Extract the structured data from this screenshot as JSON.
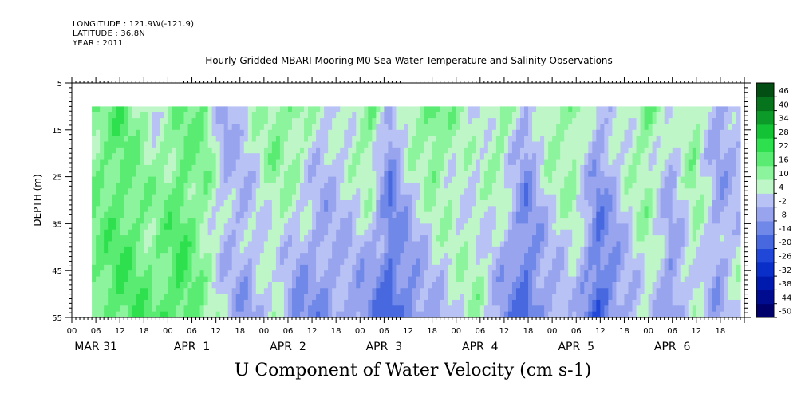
{
  "header": {
    "longitude": "LONGITUDE : 121.9W(-121.9)",
    "latitude": "LATITUDE : 36.8N",
    "year": "YEAR : 2011"
  },
  "chart_data": {
    "type": "heatmap",
    "title": "Hourly Gridded MBARI Mooring M0 Sea Water Temperature and Salinity Observations",
    "xlabel": "U Component of Water Velocity (cm s-1)",
    "ylabel": "DEPTH (m)",
    "ylim": [
      5,
      55
    ],
    "y_inverted": true,
    "y_ticks": [
      5,
      15,
      25,
      35,
      45,
      55
    ],
    "x_hour_ticks": [
      "00",
      "06",
      "12",
      "18",
      "00",
      "06",
      "12",
      "18",
      "00",
      "06",
      "12",
      "18",
      "00",
      "06",
      "12",
      "18",
      "00",
      "06",
      "12",
      "18",
      "00",
      "06",
      "12",
      "18",
      "00",
      "06",
      "12",
      "18"
    ],
    "x_day_labels": [
      "MAR 31",
      "APR  1",
      "APR  2",
      "APR  3",
      "APR  4",
      "APR  5",
      "APR  6"
    ],
    "data_start_hour": 5,
    "data_end_hour": 167,
    "data_top_depth": 10,
    "colorbar": {
      "labels": [
        "46",
        "40",
        "34",
        "28",
        "22",
        "16",
        "10",
        "4",
        "-2",
        "-8",
        "-14",
        "-20",
        "-26",
        "-32",
        "-38",
        "-44",
        "-50"
      ],
      "bins": [
        {
          "min": -50,
          "max": -44,
          "color": "#00006b"
        },
        {
          "min": -44,
          "max": -38,
          "color": "#000c90"
        },
        {
          "min": -38,
          "max": -32,
          "color": "#001aad"
        },
        {
          "min": -32,
          "max": -26,
          "color": "#0a2fc8"
        },
        {
          "min": -26,
          "max": -20,
          "color": "#2047d8"
        },
        {
          "min": -20,
          "max": -14,
          "color": "#4868e0"
        },
        {
          "min": -14,
          "max": -8,
          "color": "#7088e8"
        },
        {
          "min": -8,
          "max": -2,
          "color": "#98a4ee"
        },
        {
          "min": -2,
          "max": 4,
          "color": "#b8c2f4"
        },
        {
          "min": 4,
          "max": 10,
          "color": "#bff6c8"
        },
        {
          "min": 10,
          "max": 16,
          "color": "#8cf49c"
        },
        {
          "min": 16,
          "max": 22,
          "color": "#5aec72"
        },
        {
          "min": 22,
          "max": 28,
          "color": "#2ee04e"
        },
        {
          "min": 28,
          "max": 34,
          "color": "#14c236"
        },
        {
          "min": 34,
          "max": 40,
          "color": "#0c9a28"
        },
        {
          "min": 40,
          "max": 46,
          "color": "#06741c"
        },
        {
          "min": 46,
          "max": 52,
          "color": "#034e12"
        }
      ]
    },
    "colors": {
      "negative_low": "#3a5ad8",
      "negative_mid": "#98a6ee",
      "neutral": "#b8c2f4",
      "positive_low": "#b8f6c4",
      "positive_mid": "#6cee84",
      "positive_high": "#1ed84a"
    },
    "column_pattern_cm_s": [
      {
        "hour": 5,
        "surface": 14,
        "deep": 16
      },
      {
        "hour": 12,
        "surface": 18,
        "deep": 20
      },
      {
        "hour": 20,
        "surface": 6,
        "deep": 18
      },
      {
        "hour": 27,
        "surface": 16,
        "deep": 22
      },
      {
        "hour": 33,
        "surface": 14,
        "deep": 10
      },
      {
        "hour": 38,
        "surface": -4,
        "deep": 2
      },
      {
        "hour": 43,
        "surface": 4,
        "deep": -6
      },
      {
        "hour": 50,
        "surface": 14,
        "deep": 4
      },
      {
        "hour": 56,
        "surface": 16,
        "deep": -10
      },
      {
        "hour": 62,
        "surface": 2,
        "deep": -8
      },
      {
        "hour": 68,
        "surface": 6,
        "deep": -4
      },
      {
        "hour": 74,
        "surface": 18,
        "deep": -10
      },
      {
        "hour": 79,
        "surface": -6,
        "deep": -18
      },
      {
        "hour": 84,
        "surface": 10,
        "deep": -12
      },
      {
        "hour": 90,
        "surface": 20,
        "deep": -4
      },
      {
        "hour": 96,
        "surface": 8,
        "deep": 6
      },
      {
        "hour": 101,
        "surface": 2,
        "deep": 10
      },
      {
        "hour": 107,
        "surface": 16,
        "deep": -8
      },
      {
        "hour": 113,
        "surface": -4,
        "deep": -16
      },
      {
        "hour": 119,
        "surface": 12,
        "deep": -6
      },
      {
        "hour": 125,
        "surface": 14,
        "deep": 2
      },
      {
        "hour": 131,
        "surface": -2,
        "deep": -20
      },
      {
        "hour": 137,
        "surface": 8,
        "deep": -6
      },
      {
        "hour": 143,
        "surface": 14,
        "deep": 6
      },
      {
        "hour": 149,
        "surface": 2,
        "deep": -10
      },
      {
        "hour": 155,
        "surface": 14,
        "deep": 6
      },
      {
        "hour": 161,
        "surface": -4,
        "deep": -4
      },
      {
        "hour": 167,
        "surface": -2,
        "deep": 8
      }
    ]
  }
}
